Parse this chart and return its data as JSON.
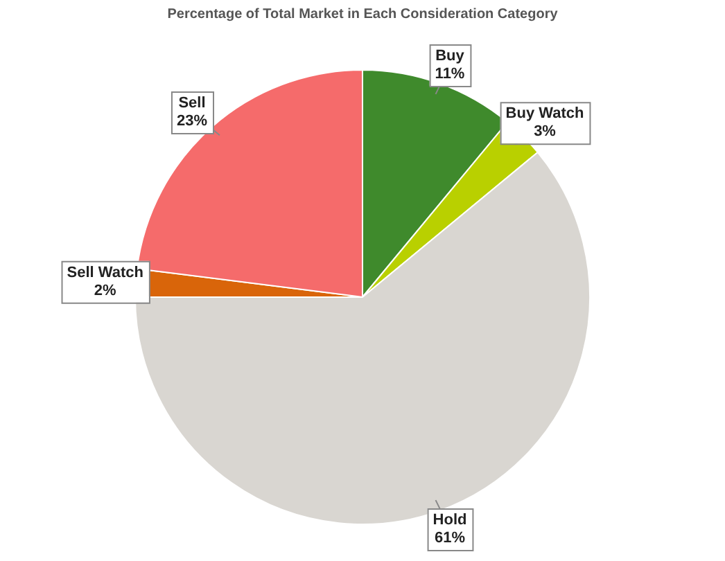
{
  "chart_data": {
    "type": "pie",
    "title": "Percentage of Total Market in Each Consideration Category",
    "categories": [
      "Buy",
      "Buy Watch",
      "Hold",
      "Sell Watch",
      "Sell"
    ],
    "values": [
      11,
      3,
      61,
      2,
      23
    ],
    "colors": [
      "#3f8a2c",
      "#b9d000",
      "#d9d6d1",
      "#d9650a",
      "#f56b6b"
    ],
    "value_labels": [
      "11%",
      "3%",
      "61%",
      "2%",
      "23%"
    ],
    "legend": false
  }
}
